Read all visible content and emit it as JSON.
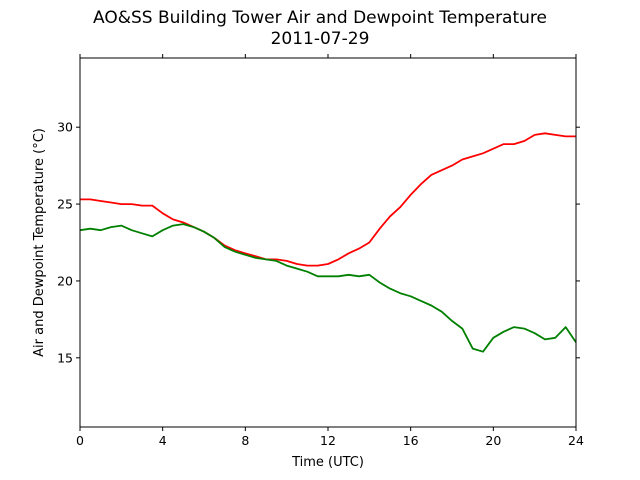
{
  "chart_data": {
    "type": "line",
    "title": "AO&SS Building Tower Air and Dewpoint Temperature",
    "subtitle": "2011-07-29",
    "xlabel": "Time (UTC)",
    "ylabel": "Air and Dewpoint Temperature (°C)",
    "xlim": [
      0,
      24
    ],
    "ylim": [
      10.5,
      34.5
    ],
    "xticks": [
      0,
      4,
      8,
      12,
      16,
      20,
      24
    ],
    "yticks": [
      15,
      20,
      25,
      30
    ],
    "grid": false,
    "legend": "none",
    "series": [
      {
        "color": "#ff0000",
        "x": [
          0,
          0.5,
          1,
          1.5,
          2,
          2.5,
          3,
          3.5,
          4,
          4.5,
          5,
          5.5,
          6,
          6.5,
          7,
          7.5,
          8,
          8.5,
          9,
          9.5,
          10,
          10.5,
          11,
          11.5,
          12,
          12.5,
          13,
          13.5,
          14,
          14.5,
          15,
          15.5,
          16,
          16.5,
          17,
          17.5,
          18,
          18.5,
          19,
          19.5,
          20,
          20.5,
          21,
          21.5,
          22,
          22.5,
          23,
          23.5,
          24
        ],
        "y": [
          25.3,
          25.3,
          25.2,
          25.1,
          25.0,
          25.0,
          24.9,
          24.9,
          24.4,
          24.0,
          23.8,
          23.5,
          23.2,
          22.8,
          22.3,
          22.0,
          21.8,
          21.6,
          21.4,
          21.4,
          21.3,
          21.1,
          21.0,
          21.0,
          21.1,
          21.4,
          21.8,
          22.1,
          22.5,
          23.4,
          24.2,
          24.8,
          25.6,
          26.3,
          26.9,
          27.2,
          27.5,
          27.9,
          28.1,
          28.3,
          28.6,
          28.9,
          28.9,
          29.1,
          29.5,
          29.6,
          29.5,
          29.4,
          29.4
        ]
      },
      {
        "color": "#008000",
        "x": [
          0,
          0.5,
          1,
          1.5,
          2,
          2.5,
          3,
          3.5,
          4,
          4.5,
          5,
          5.5,
          6,
          6.5,
          7,
          7.5,
          8,
          8.5,
          9,
          9.5,
          10,
          10.5,
          11,
          11.5,
          12,
          12.5,
          13,
          13.5,
          14,
          14.5,
          15,
          15.5,
          16,
          16.5,
          17,
          17.5,
          18,
          18.5,
          19,
          19.5,
          20,
          20.5,
          21,
          21.5,
          22,
          22.5,
          23,
          23.5,
          24
        ],
        "y": [
          23.3,
          23.4,
          23.3,
          23.5,
          23.6,
          23.3,
          23.1,
          22.9,
          23.3,
          23.6,
          23.7,
          23.5,
          23.2,
          22.8,
          22.2,
          21.9,
          21.7,
          21.5,
          21.4,
          21.3,
          21.0,
          20.8,
          20.6,
          20.3,
          20.3,
          20.3,
          20.4,
          20.3,
          20.4,
          19.9,
          19.5,
          19.2,
          19.0,
          18.7,
          18.4,
          18.0,
          17.4,
          16.9,
          15.6,
          15.4,
          16.3,
          16.7,
          17.0,
          16.9,
          16.6,
          16.2,
          16.3,
          17.0,
          16.0
        ]
      }
    ]
  }
}
